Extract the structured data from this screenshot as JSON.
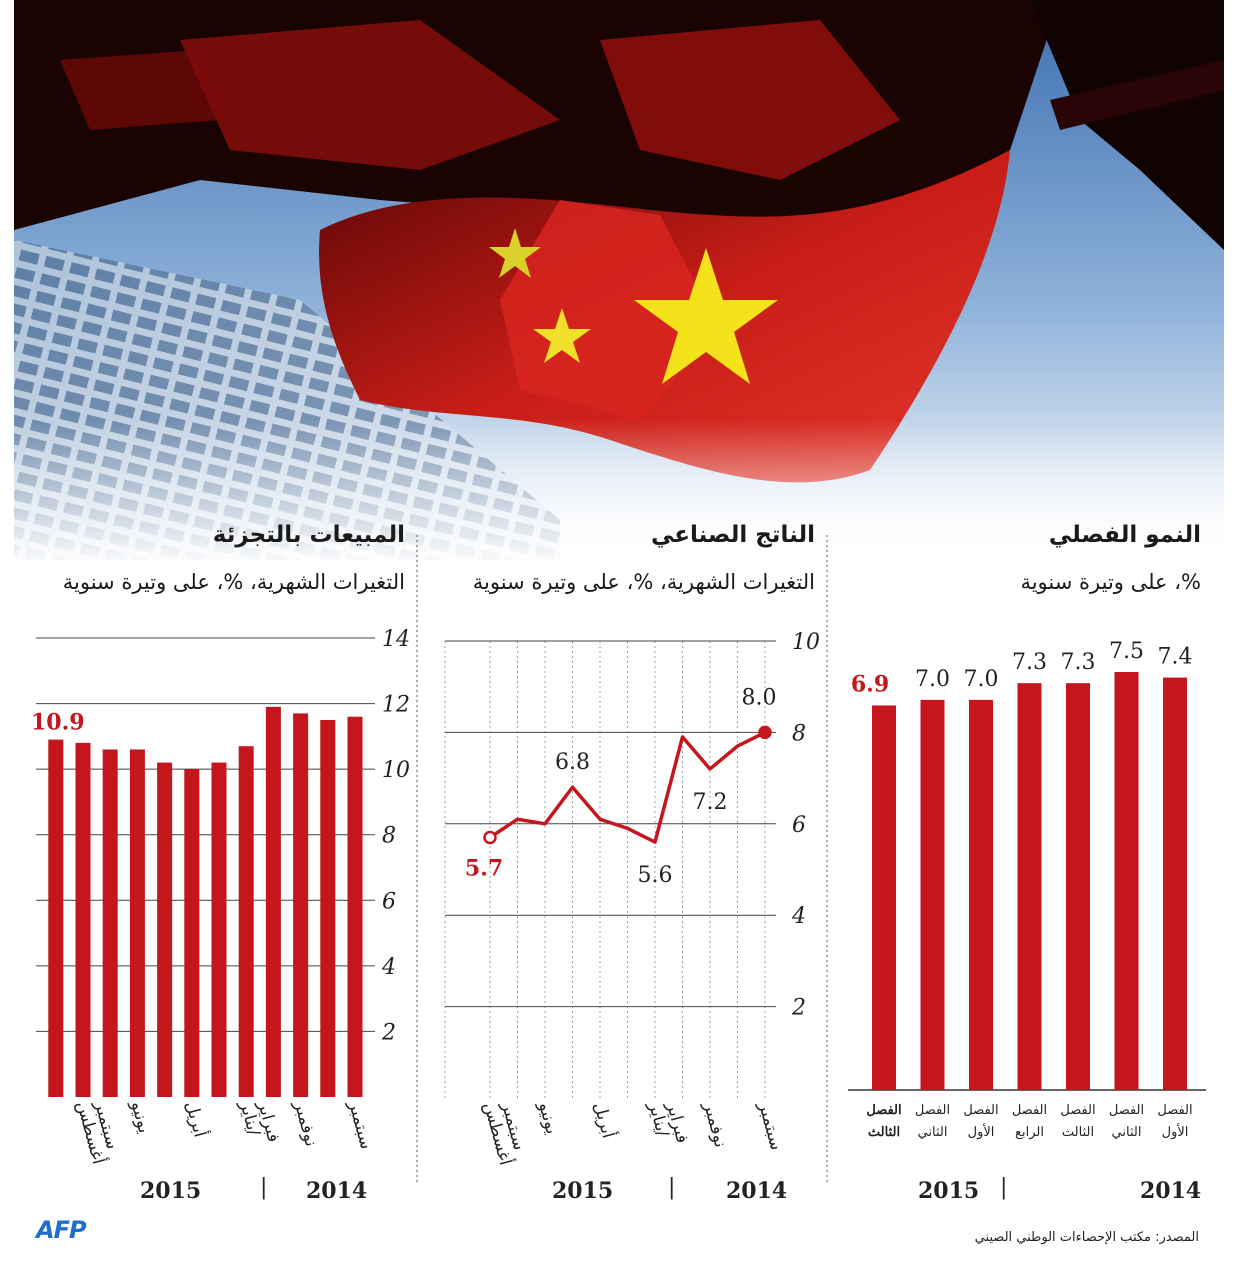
{
  "logo": "AFP",
  "source": "المصدر: مكتب الإحصاءات الوطني الصيني",
  "colors": {
    "bar": "#c4161c",
    "line": "#c4161c",
    "highlight": "#c4161c",
    "flag_red": "#d8241e",
    "flag_star": "#f4e21a"
  },
  "charts": {
    "quarterly": {
      "title": "النمو الفصلي",
      "subtitle": "%، على وتيرة سنوية",
      "year_right": "2014",
      "year_left": "2015"
    },
    "industrial": {
      "title": "الناتج الصناعي",
      "subtitle": "التغيرات الشهرية، %، على وتيرة سنوية",
      "year_right": "2014",
      "year_left": "2015"
    },
    "retail": {
      "title": "المبيعات بالتجزئة",
      "subtitle": "التغيرات الشهرية، %، على وتيرة سنوية",
      "year_right": "2014",
      "year_left": "2015"
    }
  },
  "chart_data": [
    {
      "id": "quarterly",
      "type": "bar",
      "title": "النمو الفصلي",
      "subtitle": "%، على وتيرة سنوية",
      "categories": [
        [
          "الفصل",
          "الأول"
        ],
        [
          "الفصل",
          "الثاني"
        ],
        [
          "الفصل",
          "الثالث"
        ],
        [
          "الفصل",
          "الرابع"
        ],
        [
          "الفصل",
          "الأول"
        ],
        [
          "الفصل",
          "الثاني"
        ],
        [
          "الفصل",
          "الثالث"
        ]
      ],
      "values": [
        7.4,
        7.5,
        7.3,
        7.3,
        7.0,
        7.0,
        6.9
      ],
      "value_labels": [
        "7.4",
        "7.5",
        "7.3",
        "7.3",
        "7.0",
        "7.0",
        "6.9"
      ],
      "highlight_index": 6,
      "ylim": [
        0,
        8
      ],
      "grid": false
    },
    {
      "id": "industrial",
      "type": "line",
      "title": "الناتج الصناعي",
      "subtitle": "التغيرات الشهرية، %، على وتيرة سنوية",
      "x_labels": [
        [
          "سبتمبر"
        ],
        [
          "نوفمبر"
        ],
        [
          "يناير/",
          "فبراير"
        ],
        [
          "أبريل"
        ],
        [
          "يونيو"
        ],
        [
          "أغسطس",
          "سبتمبر"
        ]
      ],
      "x_label_indices": [
        0,
        2,
        4,
        6,
        8,
        10
      ],
      "values": [
        8.0,
        7.7,
        7.2,
        7.9,
        5.6,
        5.9,
        6.1,
        6.8,
        6.0,
        6.1,
        5.7
      ],
      "annotations": [
        {
          "index": 0,
          "label": "8.0"
        },
        {
          "index": 2,
          "label": "7.2"
        },
        {
          "index": 4,
          "label": "5.6"
        },
        {
          "index": 7,
          "label": "6.8"
        },
        {
          "index": 10,
          "label": "5.7"
        }
      ],
      "yticks": [
        2,
        4,
        6,
        8,
        10
      ],
      "ylim": [
        0,
        10
      ],
      "grid": true
    },
    {
      "id": "retail",
      "type": "bar",
      "title": "المبيعات بالتجزئة",
      "subtitle": "التغيرات الشهرية، %، على وتيرة سنوية",
      "x_labels": [
        [
          "سبتمبر"
        ],
        [
          "نوفمبر"
        ],
        [
          "يناير/",
          "فبراير"
        ],
        [
          "أبريل"
        ],
        [
          "يونيو"
        ],
        [
          "أغسطس",
          "سبتمبر"
        ]
      ],
      "x_label_indices": [
        0,
        2,
        4,
        6,
        8,
        10
      ],
      "values": [
        11.6,
        11.5,
        11.7,
        11.9,
        10.7,
        10.2,
        10.0,
        10.2,
        10.6,
        10.6,
        10.8,
        10.9
      ],
      "annotations": [
        {
          "index": 11,
          "label": "10.9"
        }
      ],
      "yticks": [
        2,
        4,
        6,
        8,
        10,
        12,
        14
      ],
      "ylim": [
        0,
        14
      ],
      "grid": true
    }
  ]
}
